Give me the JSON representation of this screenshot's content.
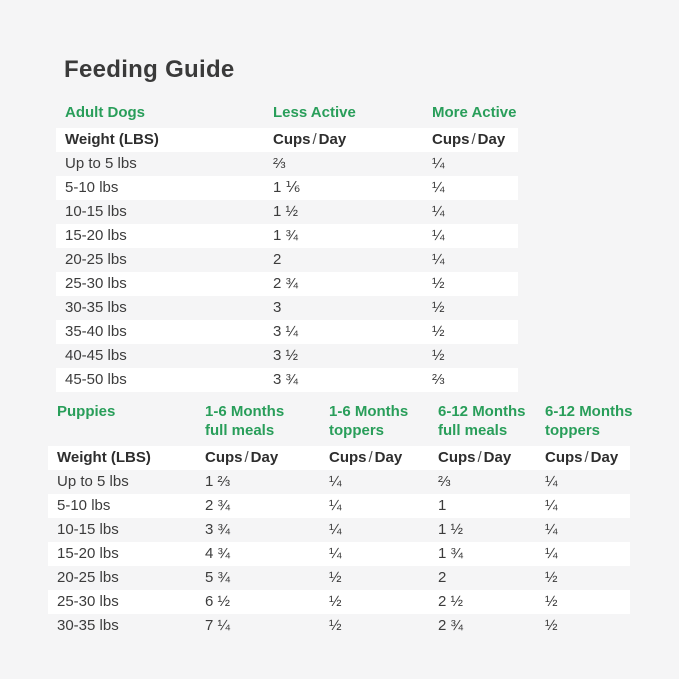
{
  "page": {
    "title": "Feeding Guide"
  },
  "colors": {
    "accent_green": "#299e5a",
    "title_text": "#3a3a3a",
    "body_text": "#3c3c3c",
    "background": "#f5f5f6",
    "row_stripe": "#ffffff"
  },
  "chart_data": [
    {
      "type": "table",
      "section_label": "Adult Dogs",
      "activity_headers": [
        "Less Active",
        "More Active"
      ],
      "weight_header": "Weight (LBS)",
      "unit_header_parts": {
        "cups": "Cups",
        "slash": "/",
        "day": "Day"
      },
      "rows": [
        [
          "Up to 5 lbs",
          "⅔",
          "¼"
        ],
        [
          "5-10 lbs",
          "1 ⅙",
          "¼"
        ],
        [
          "10-15 lbs",
          "1 ½",
          "¼"
        ],
        [
          "15-20 lbs",
          "1 ¾",
          "¼"
        ],
        [
          "20-25 lbs",
          "2",
          "¼"
        ],
        [
          "25-30 lbs",
          "2 ¾",
          "½"
        ],
        [
          "30-35 lbs",
          "3",
          "½"
        ],
        [
          "35-40 lbs",
          "3 ¼",
          "½"
        ],
        [
          "40-45 lbs",
          "3 ½",
          "½"
        ],
        [
          "45-50 lbs",
          "3 ¾",
          "⅔"
        ]
      ]
    },
    {
      "type": "table",
      "section_label": "Puppies",
      "col_headers": [
        {
          "line1": "1-6 Months",
          "line2": "full meals"
        },
        {
          "line1": "1-6 Months",
          "line2": "toppers"
        },
        {
          "line1": "6-12 Months",
          "line2": "full meals"
        },
        {
          "line1": "6-12 Months",
          "line2": "toppers"
        }
      ],
      "weight_header": "Weight (LBS)",
      "unit_header_parts": {
        "cups": "Cups",
        "slash": "/",
        "day": "Day"
      },
      "rows": [
        [
          "Up to 5 lbs",
          "1 ⅔",
          "¼",
          "⅔",
          "¼"
        ],
        [
          "5-10 lbs",
          "2 ¾",
          "¼",
          "1",
          "¼"
        ],
        [
          "10-15 lbs",
          "3 ¾",
          "¼",
          "1 ½",
          "¼"
        ],
        [
          "15-20 lbs",
          "4 ¾",
          "¼",
          "1 ¾",
          "¼"
        ],
        [
          "20-25 lbs",
          "5 ¾",
          "½",
          "2",
          "½"
        ],
        [
          "25-30 lbs",
          "6 ½",
          "½",
          "2 ½",
          "½"
        ],
        [
          "30-35 lbs",
          "7 ¼",
          "½",
          "2 ¾",
          "½"
        ]
      ]
    }
  ]
}
